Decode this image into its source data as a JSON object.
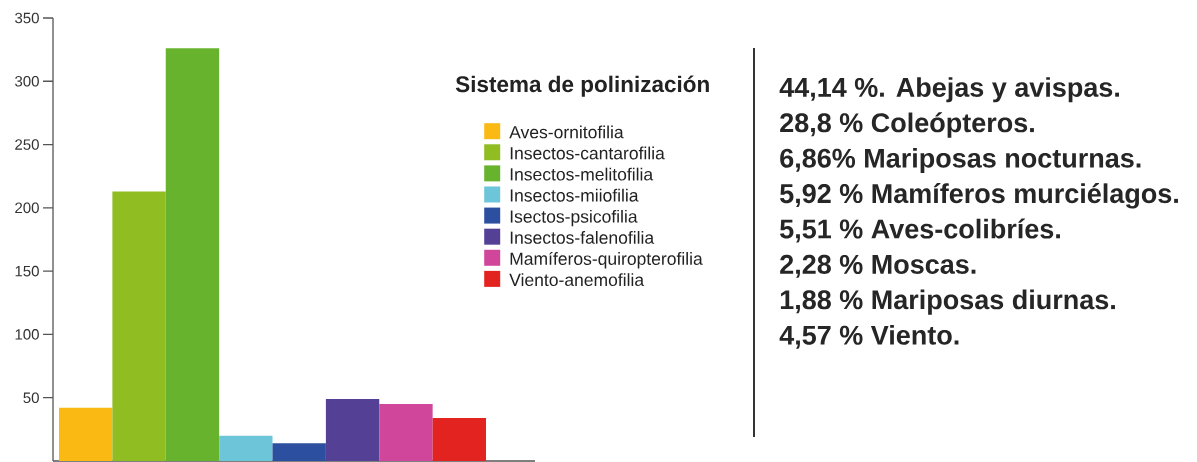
{
  "chart_data": [
    {
      "type": "bar",
      "legend_title": "Sistema de polinización",
      "categories": [
        null
      ],
      "series": [
        {
          "name": "Aves-ornitofilia",
          "color": "#fbb913",
          "values": [
            42
          ]
        },
        {
          "name": "Insectos-cantarofilia",
          "color": "#8fbd22",
          "values": [
            213
          ]
        },
        {
          "name": "Insectos-melitofilia",
          "color": "#67b32e",
          "values": [
            326
          ]
        },
        {
          "name": "Insectos-miiofilia",
          "color": "#6cc5d9",
          "values": [
            20
          ]
        },
        {
          "name": "Isectos-psicofilia",
          "color": "#2d4f9f",
          "values": [
            14
          ]
        },
        {
          "name": "Insectos-falenofilia",
          "color": "#544196",
          "values": [
            49
          ]
        },
        {
          "name": "Mamíferos-quiropterofilia",
          "color": "#cf469b",
          "values": [
            45
          ]
        },
        {
          "name": "Viento-anemofilia",
          "color": "#e3231f",
          "values": [
            34
          ]
        }
      ],
      "ylim": [
        0,
        350
      ],
      "yticks": [
        50,
        100,
        150,
        200,
        250,
        300,
        350
      ],
      "legend": "top right"
    },
    {
      "type": "other",
      "annotations": [
        "44,14 %. Abejas y avispas.",
        "28,8 % Coleópteros.",
        "6,86% Mariposas nocturnas.",
        "5,92 % Mamíferos murciélagos.",
        "5,51 % Aves-colibríes.",
        "2,28 % Moscas.",
        "1,88 % Mariposas diurnas.",
        "4,57 % Viento."
      ]
    }
  ]
}
